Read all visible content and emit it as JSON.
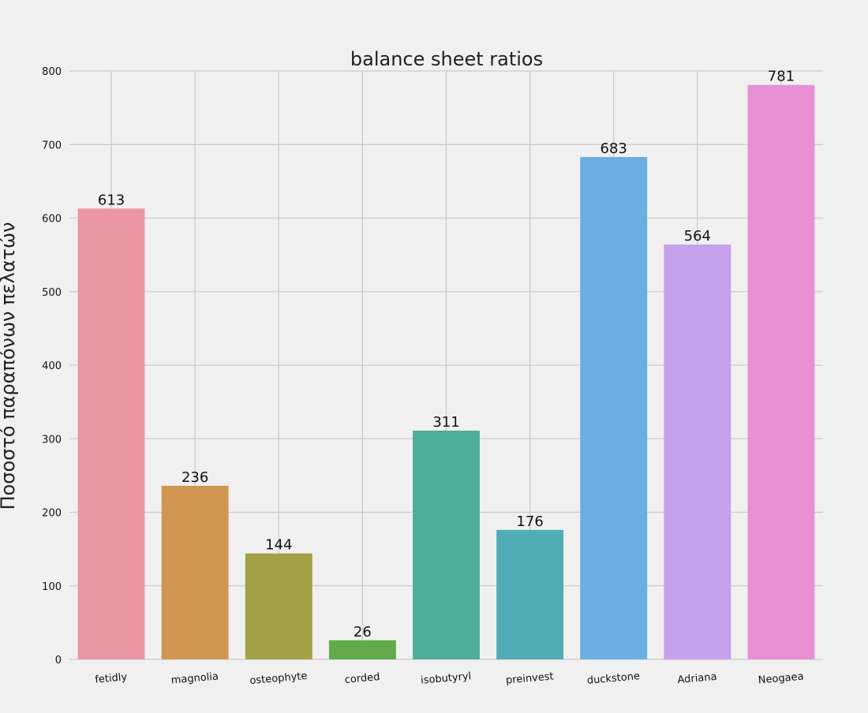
{
  "chart_data": {
    "type": "bar",
    "title": "balance sheet ratios",
    "xlabel": "",
    "ylabel": "Ποσοστό παραπόνων πελατών",
    "categories": [
      "fetidly",
      "magnolia",
      "osteophyte",
      "corded",
      "isobutyryl",
      "preinvest",
      "duckstone",
      "Adriana",
      "Neogaea"
    ],
    "values": [
      613,
      236,
      144,
      26,
      311,
      176,
      683,
      564,
      781
    ],
    "colors": [
      "#ea96a3",
      "#d09650",
      "#a3a046",
      "#61ab4b",
      "#4daf98",
      "#50acb5",
      "#6aaee2",
      "#c6a0eb",
      "#e98fd4"
    ],
    "ylim": [
      0,
      800
    ],
    "yticks": [
      0,
      100,
      200,
      300,
      400,
      500,
      600,
      700,
      800
    ],
    "grid": true,
    "data_labels": true,
    "legend": "none"
  }
}
